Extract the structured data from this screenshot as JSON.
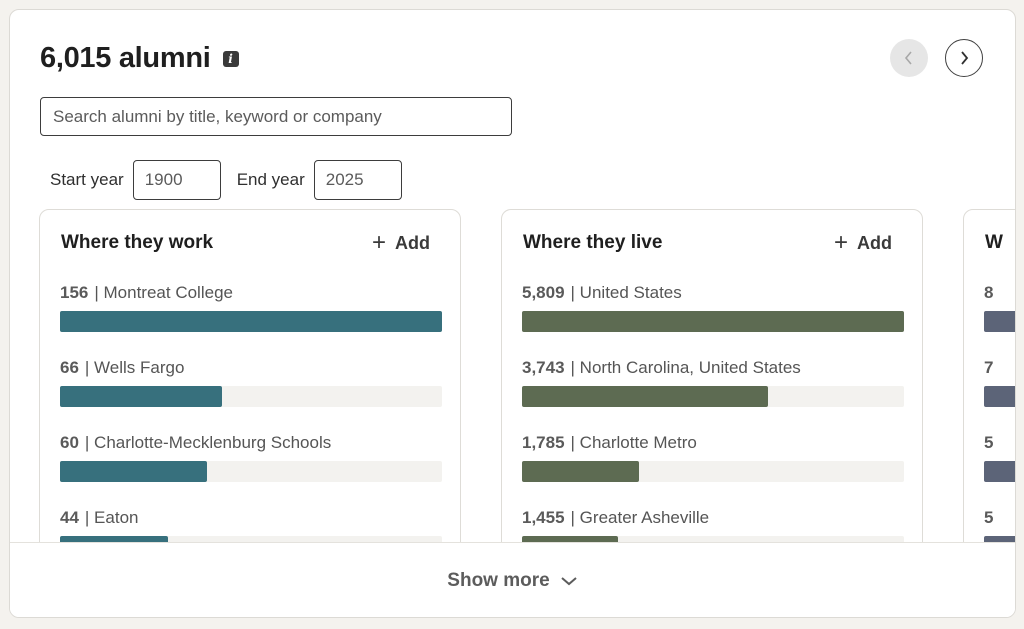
{
  "header": {
    "title": "6,015 alumni",
    "info_icon": "info-icon"
  },
  "nav": {
    "prev_icon": "chevron-left-icon",
    "next_icon": "chevron-right-icon"
  },
  "search": {
    "placeholder": "Search alumni by title, keyword or company"
  },
  "years": {
    "start_label": "Start year",
    "start_value": "1900",
    "end_label": "End year",
    "end_value": "2025"
  },
  "panels": [
    {
      "title": "Where they work",
      "add_label": "Add",
      "color": "#37707d",
      "rows": [
        {
          "count": "156",
          "label": "| Montreat College",
          "fill": 1.0
        },
        {
          "count": "66",
          "label": "| Wells Fargo",
          "fill": 0.423
        },
        {
          "count": "60",
          "label": "| Charlotte-Mecklenburg Schools",
          "fill": 0.385
        },
        {
          "count": "44",
          "label": "| Eaton",
          "fill": 0.282
        }
      ]
    },
    {
      "title": "Where they live",
      "add_label": "Add",
      "color": "#5d6b52",
      "rows": [
        {
          "count": "5,809",
          "label": "| United States",
          "fill": 1.0
        },
        {
          "count": "3,743",
          "label": "| North Carolina, United States",
          "fill": 0.644
        },
        {
          "count": "1,785",
          "label": "| Charlotte Metro",
          "fill": 0.307
        },
        {
          "count": "1,455",
          "label": "| Greater Asheville",
          "fill": 0.25
        }
      ]
    },
    {
      "title": "W",
      "color": "#5c6478",
      "rows": [
        {
          "count": "8"
        },
        {
          "count": "7"
        },
        {
          "count": "5"
        },
        {
          "count": "5"
        }
      ]
    }
  ],
  "footer": {
    "show_more": "Show more"
  }
}
